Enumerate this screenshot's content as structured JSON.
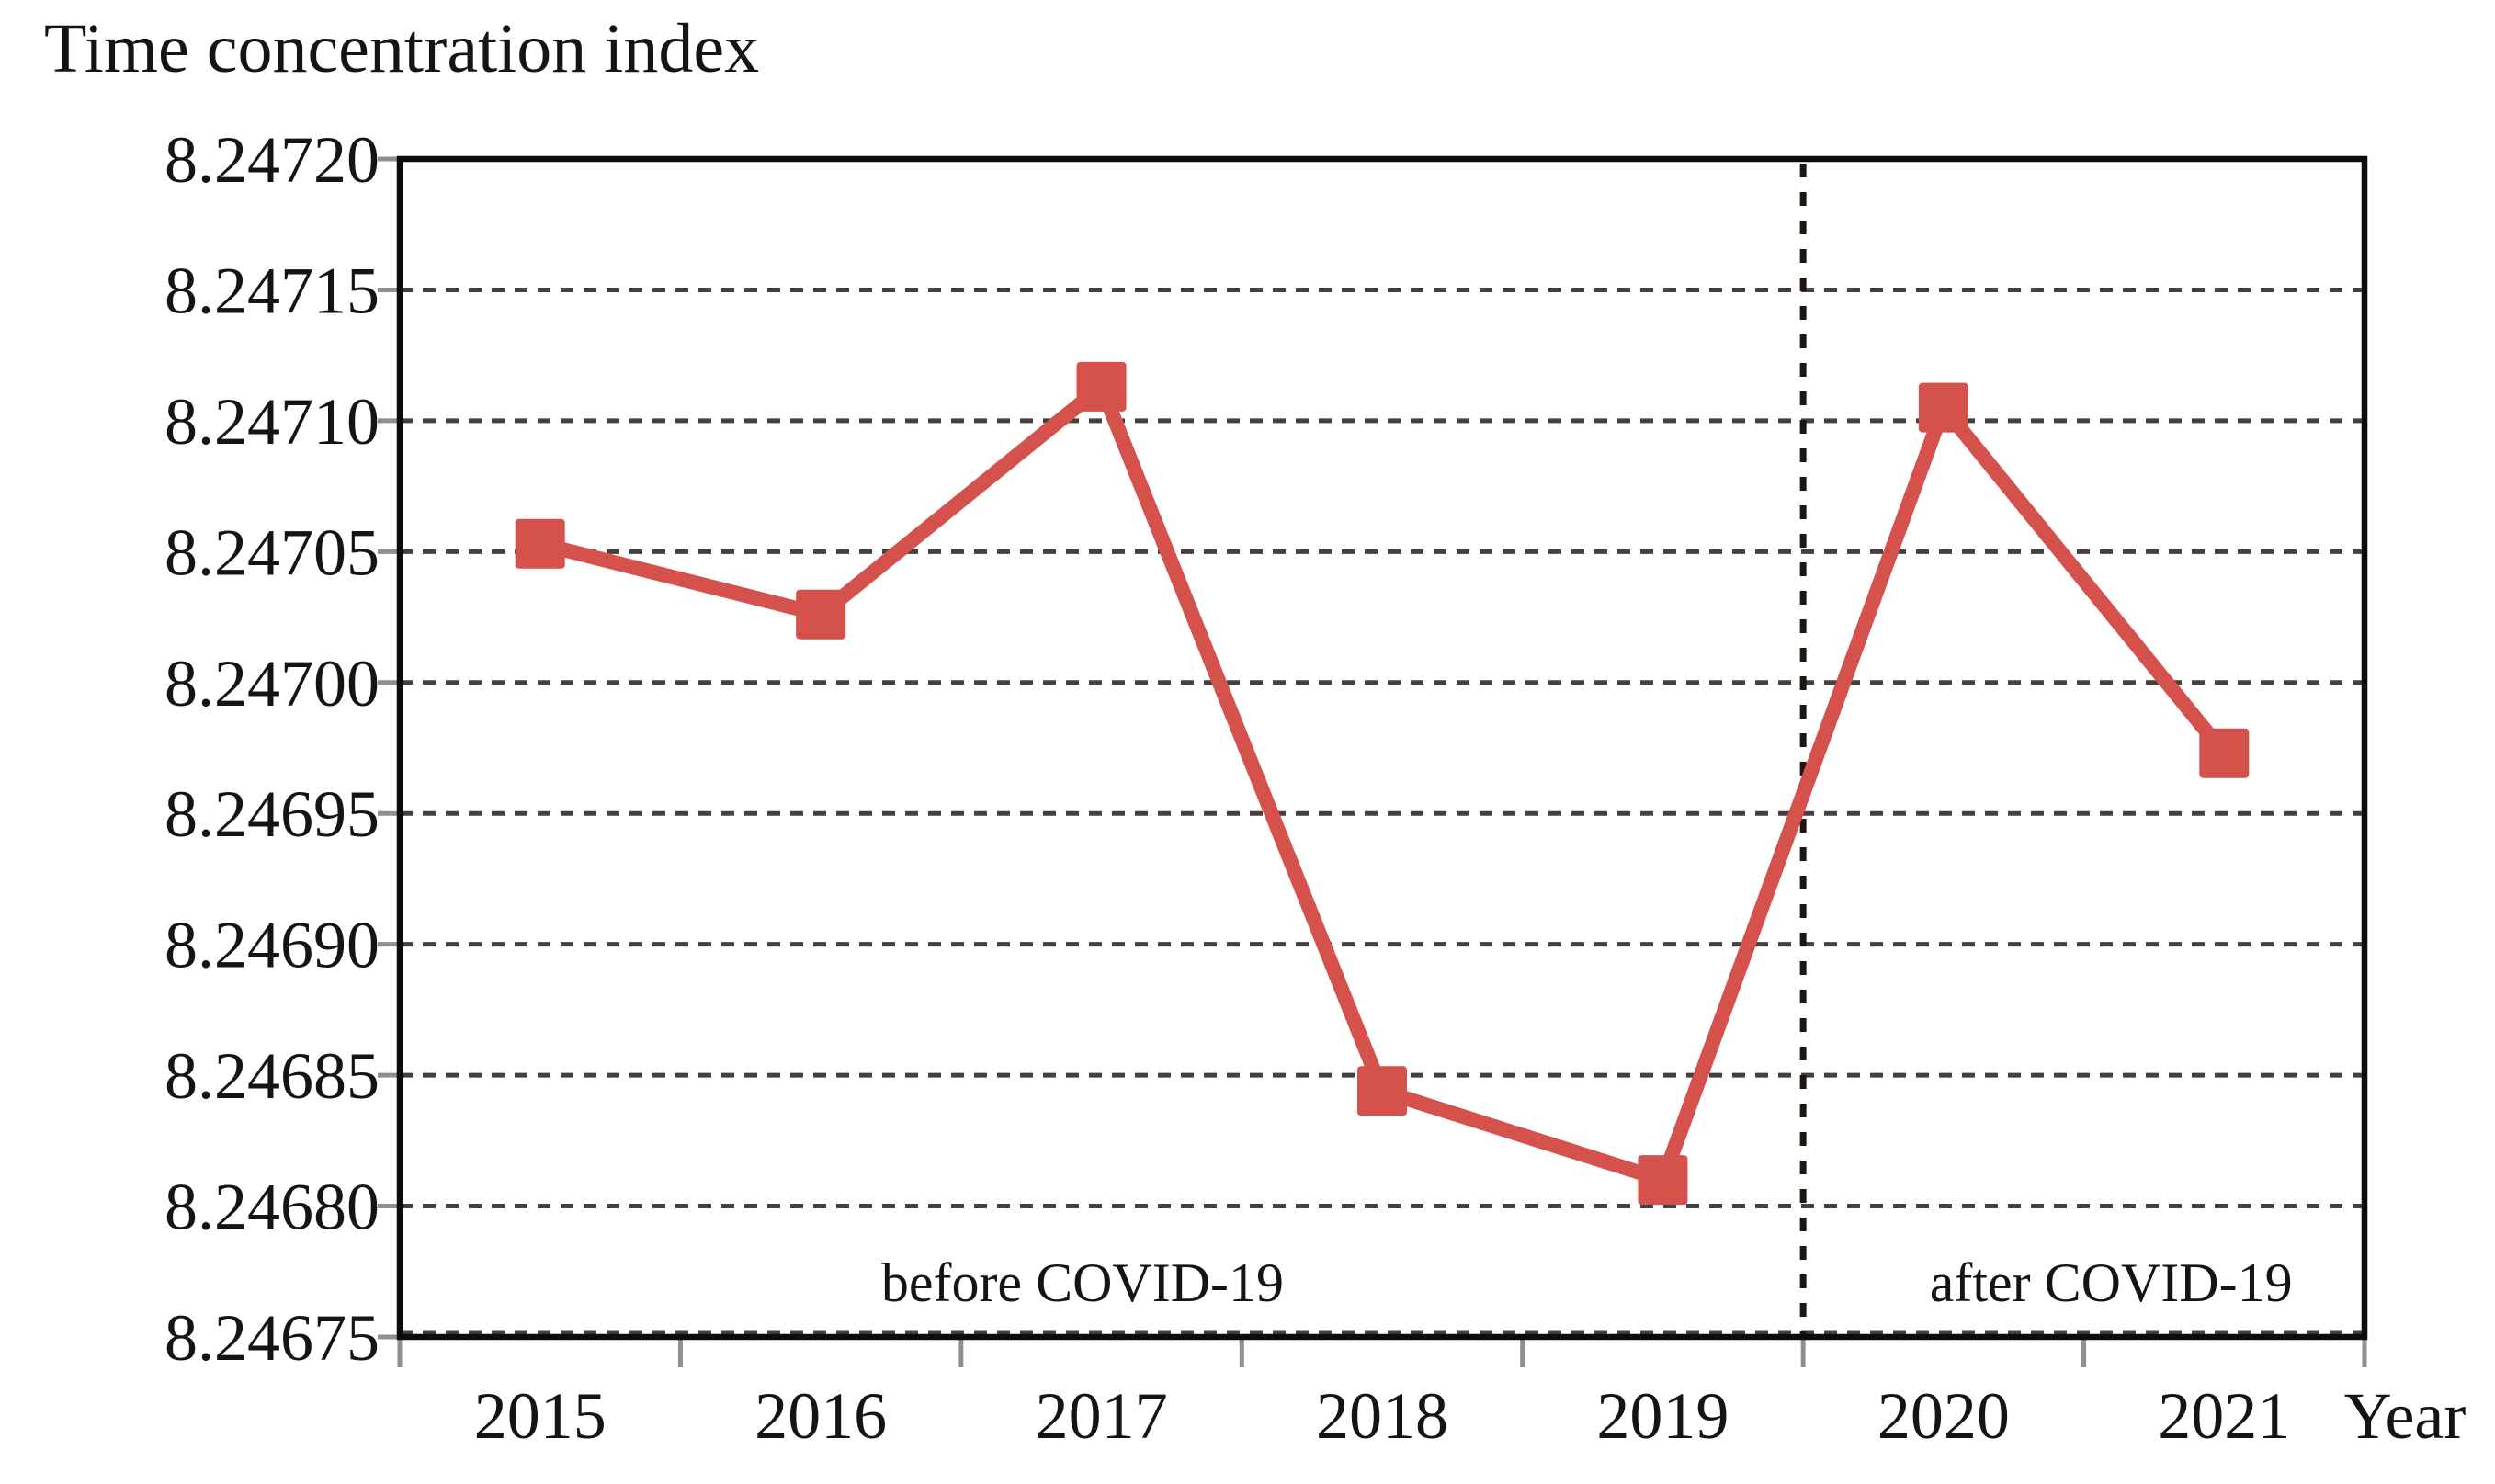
{
  "title": "Time concentration index",
  "x_axis": {
    "title": "Year",
    "categories": [
      "2015",
      "2016",
      "2017",
      "2018",
      "2019",
      "2020",
      "2021"
    ]
  },
  "y_axis": {
    "tick_labels": [
      "8.24720",
      "8.24715",
      "8.24710",
      "8.24705",
      "8.24700",
      "8.24695",
      "8.24690",
      "8.24685",
      "8.24680",
      "8.24675"
    ]
  },
  "annotations": {
    "before_label": "before COVID-19",
    "after_label": "after COVID-19"
  },
  "chart_data": {
    "type": "line",
    "title": "Time concentration index",
    "xlabel": "Year",
    "ylabel": "Time concentration index",
    "categories": [
      "2015",
      "2016",
      "2017",
      "2018",
      "2019",
      "2020",
      "2021"
    ],
    "values": [
      8.247053,
      8.247026,
      8.247113,
      8.246844,
      8.24681,
      8.247105,
      8.246973
    ],
    "ylim": [
      8.24675,
      8.2472
    ],
    "ytick_step": 5e-05,
    "grid": "horizontal dashed",
    "legend": "none",
    "marker": "square",
    "line_width": 16,
    "separator": {
      "style": "vertical dashed line",
      "between": [
        "2019",
        "2020"
      ],
      "boundary_index": 5,
      "left_label": "before COVID-19",
      "right_label": "after COVID-19"
    }
  },
  "colors": {
    "series": "#d5514b",
    "gridline": "#45403c",
    "axis": "#0e0c0a",
    "tick": "#8f8f8f",
    "text": "#161310",
    "separator": "#1c1713",
    "background": "#ffffff"
  }
}
